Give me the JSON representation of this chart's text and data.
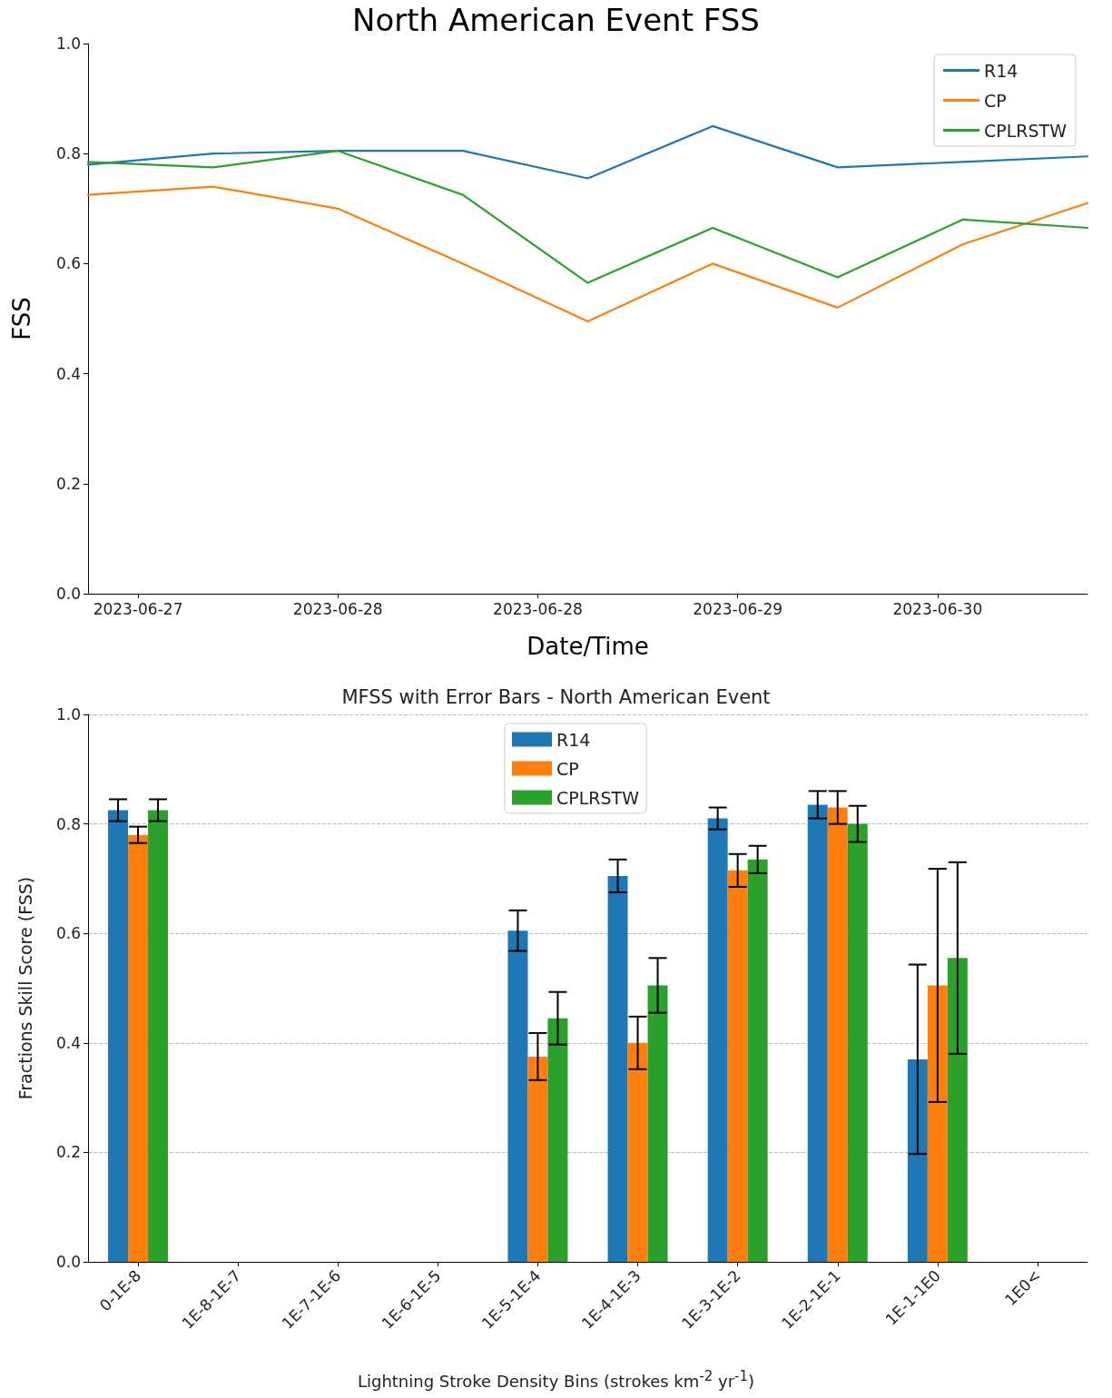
{
  "chart_data": [
    {
      "type": "line",
      "title": "North American Event FSS",
      "xlabel": "Date/Time",
      "ylabel": "FSS",
      "x": [
        "2023-06-27T08:00",
        "2023-06-27T18:00",
        "2023-06-28T04:00",
        "2023-06-28T14:00",
        "2023-06-29T00:00",
        "2023-06-29T10:00",
        "2023-06-29T20:00",
        "2023-06-30T06:00",
        "2023-06-30T16:00"
      ],
      "series": [
        {
          "name": "R14",
          "color": "#1f77b4",
          "values": [
            0.78,
            0.8,
            0.805,
            0.805,
            0.755,
            0.85,
            0.775,
            0.785,
            0.795
          ]
        },
        {
          "name": "CP",
          "color": "#ff7f0e",
          "values": [
            0.725,
            0.74,
            0.7,
            0.6,
            0.495,
            0.6,
            0.52,
            0.635,
            0.71
          ]
        },
        {
          "name": "CPLRSTW",
          "color": "#2ca02c",
          "values": [
            0.785,
            0.775,
            0.805,
            0.725,
            0.565,
            0.665,
            0.575,
            0.68,
            0.665
          ]
        }
      ],
      "xlim": [
        "2023-06-27T08:00",
        "2023-06-30T16:00"
      ],
      "xticks": [
        {
          "value": "2023-06-27T12:00",
          "label": "2023-06-27"
        },
        {
          "value": "2023-06-28T04:00",
          "label": "2023-06-28"
        },
        {
          "value": "2023-06-28T20:00",
          "label": "2023-06-28"
        },
        {
          "value": "2023-06-29T12:00",
          "label": "2023-06-29"
        },
        {
          "value": "2023-06-30T04:00",
          "label": "2023-06-30"
        }
      ],
      "ylim": [
        0,
        1
      ],
      "yticks": [
        {
          "value": 0,
          "label": "0.0"
        },
        {
          "value": 0.2,
          "label": "0.2"
        },
        {
          "value": 0.4,
          "label": "0.4"
        },
        {
          "value": 0.6,
          "label": "0.6"
        },
        {
          "value": 0.8,
          "label": "0.8"
        },
        {
          "value": 1,
          "label": "1.0"
        }
      ],
      "legend": "top right",
      "grid": false,
      "marker": "none",
      "line_style": "solid"
    },
    {
      "type": "bar",
      "title": "MFSS with Error Bars - North American Event",
      "xlabel": "Lightning Stroke Density Bins (strokes km$^{-2}$ yr$^{-1}$)",
      "ylabel": "Fractions Skill Score (FSS)",
      "categories": [
        "0-1E-8",
        "1E-8-1E-7",
        "1E-7-1E-6",
        "1E-6-1E-5",
        "1E-5-1E-4",
        "1E-4-1E-3",
        "1E-3-1E-2",
        "1E-2-1E-1",
        "1E-1-1E0",
        "1E0<"
      ],
      "series": [
        {
          "name": "R14",
          "color": "#1f77b4",
          "values": [
            0.825,
            0,
            0,
            0,
            0.605,
            0.705,
            0.81,
            0.835,
            0.37,
            null
          ],
          "errors": [
            0.02,
            null,
            null,
            null,
            0.037,
            0.03,
            0.02,
            0.025,
            0.173,
            null
          ]
        },
        {
          "name": "CP",
          "color": "#ff7f0e",
          "values": [
            0.78,
            0,
            0,
            0,
            0.375,
            0.4,
            0.715,
            0.83,
            0.505,
            null
          ],
          "errors": [
            0.015,
            null,
            null,
            null,
            0.043,
            0.048,
            0.03,
            0.03,
            0.213,
            null
          ]
        },
        {
          "name": "CPLRSTW",
          "color": "#2ca02c",
          "values": [
            0.825,
            0,
            0,
            0,
            0.445,
            0.505,
            0.735,
            0.8,
            0.555,
            null
          ],
          "errors": [
            0.02,
            null,
            null,
            null,
            0.048,
            0.05,
            0.025,
            0.033,
            0.175,
            null
          ]
        }
      ],
      "ylim": [
        0,
        1
      ],
      "yticks": [
        {
          "value": 0,
          "label": "0.0"
        },
        {
          "value": 0.2,
          "label": "0.2"
        },
        {
          "value": 0.4,
          "label": "0.4"
        },
        {
          "value": 0.6,
          "label": "0.6"
        },
        {
          "value": 0.8,
          "label": "0.8"
        },
        {
          "value": 1,
          "label": "1.0"
        }
      ],
      "legend": "top",
      "grid": "y"
    }
  ]
}
